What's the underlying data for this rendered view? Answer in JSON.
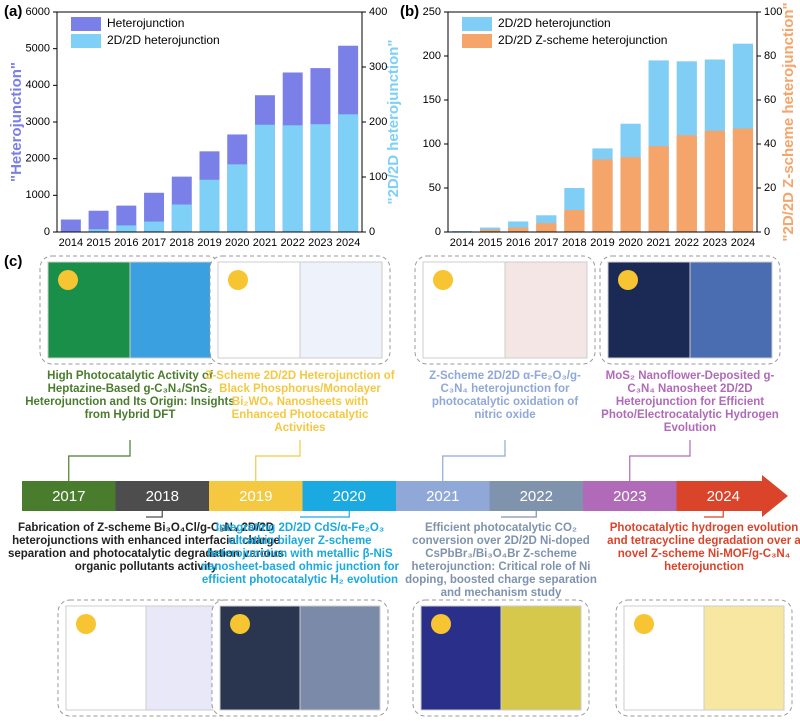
{
  "chart_data": [
    {
      "type": "bar",
      "panel": "(a)",
      "ylabel": "\"Heterojunction\"",
      "y2label": "\"2D/2D heterojunction\"",
      "categories": [
        "2014",
        "2015",
        "2016",
        "2017",
        "2018",
        "2019",
        "2020",
        "2021",
        "2022",
        "2023",
        "2024"
      ],
      "series": [
        {
          "name": "Heterojunction",
          "color": "#7b7fe8",
          "values": [
            340,
            580,
            720,
            1070,
            1510,
            2200,
            2660,
            3730,
            4350,
            4470,
            5080
          ]
        },
        {
          "name": "2D/2D heterojunction",
          "color": "#7fd0f7",
          "axis": "y2",
          "values": [
            1,
            5,
            12,
            19,
            50,
            95,
            123,
            195,
            194,
            196,
            214
          ]
        }
      ],
      "ylim": [
        0,
        6000
      ],
      "yticks": [
        0,
        1000,
        2000,
        3000,
        4000,
        5000,
        6000
      ],
      "y2lim": [
        0,
        400
      ],
      "y2ticks": [
        0,
        100,
        200,
        300,
        400
      ]
    },
    {
      "type": "bar",
      "panel": "(b)",
      "y2label": "\"2D/2D Z-scheme heterojunction\"",
      "categories": [
        "2014",
        "2015",
        "2016",
        "2017",
        "2018",
        "2019",
        "2020",
        "2021",
        "2022",
        "2023",
        "2024"
      ],
      "series": [
        {
          "name": "2D/2D heterojunction",
          "color": "#80cdf5",
          "values": [
            1,
            5,
            12,
            19,
            50,
            95,
            123,
            195,
            194,
            196,
            214
          ]
        },
        {
          "name": "2D/2D Z-scheme heterojunction",
          "color": "#f5a46a",
          "axis": "y2",
          "values": [
            0,
            1,
            2,
            4,
            10,
            33,
            34,
            39,
            44,
            46,
            47
          ]
        }
      ],
      "ylim": [
        0,
        250
      ],
      "yticks": [
        0,
        50,
        100,
        150,
        200,
        250
      ],
      "y2lim": [
        0,
        100
      ],
      "y2ticks": [
        0,
        20,
        40,
        60,
        80,
        100
      ]
    }
  ],
  "timeline": {
    "panel": "(c)",
    "events": [
      {
        "year": "2017",
        "color": "#4a7c2e",
        "title": "High Photocatalytic Activity of Heptazine-Based g-C₃N₄/SnS₂ Heterojunction and Its Origin: Insights from Hybrid DFT"
      },
      {
        "year": "2018",
        "color": "#4d4d4d",
        "title": "Fabrication of Z-scheme Bi₃O₄Cl/g-C₃N₄ 2D/2D heterojunctions with enhanced interfacial charge separation and photocatalytic degradation various organic pollutants activity"
      },
      {
        "year": "2019",
        "color": "#f5c842",
        "title": "Z-Scheme 2D/2D Heterojunction of Black Phosphorus/Monolayer Bi₂WO₆ Nanosheets with Enhanced Photocatalytic Activities"
      },
      {
        "year": "2020",
        "color": "#1aa9e0",
        "title": "Integrating 2D/2D CdS/α-Fe₂O₃ ultrathin bilayer Z-scheme heterojunction with metallic β-NiS nanosheet-based ohmic junction for efficient photocatalytic H₂ evolution"
      },
      {
        "year": "2021",
        "color": "#8fa8d8",
        "title": "Z-Scheme 2D/2D α-Fe₂O₃/g-C₃N₄ heterojunction for photocatalytic oxidation of nitric oxide"
      },
      {
        "year": "2022",
        "color": "#7f93ad",
        "title": "Efficient photocatalytic CO₂ conversion over 2D/2D Ni-doped CsPbBr₃/Bi₃O₄Br Z-scheme heterojunction: Critical role of Ni doping, boosted charge separation and mechanism study"
      },
      {
        "year": "2023",
        "color": "#b06ab8",
        "title": "MoS₂ Nanoflower-Deposited g-C₃N₄ Nanosheet 2D/2D Heterojunction for Efficient Photo/Electrocatalytic Hydrogen Evolution"
      },
      {
        "year": "2024",
        "color": "#d9442a",
        "title": "Photocatalytic hydrogen evolution and tetracycline degradation over a novel Z-scheme Ni-MOF/g-C₃N₄ heterojunction"
      }
    ]
  }
}
